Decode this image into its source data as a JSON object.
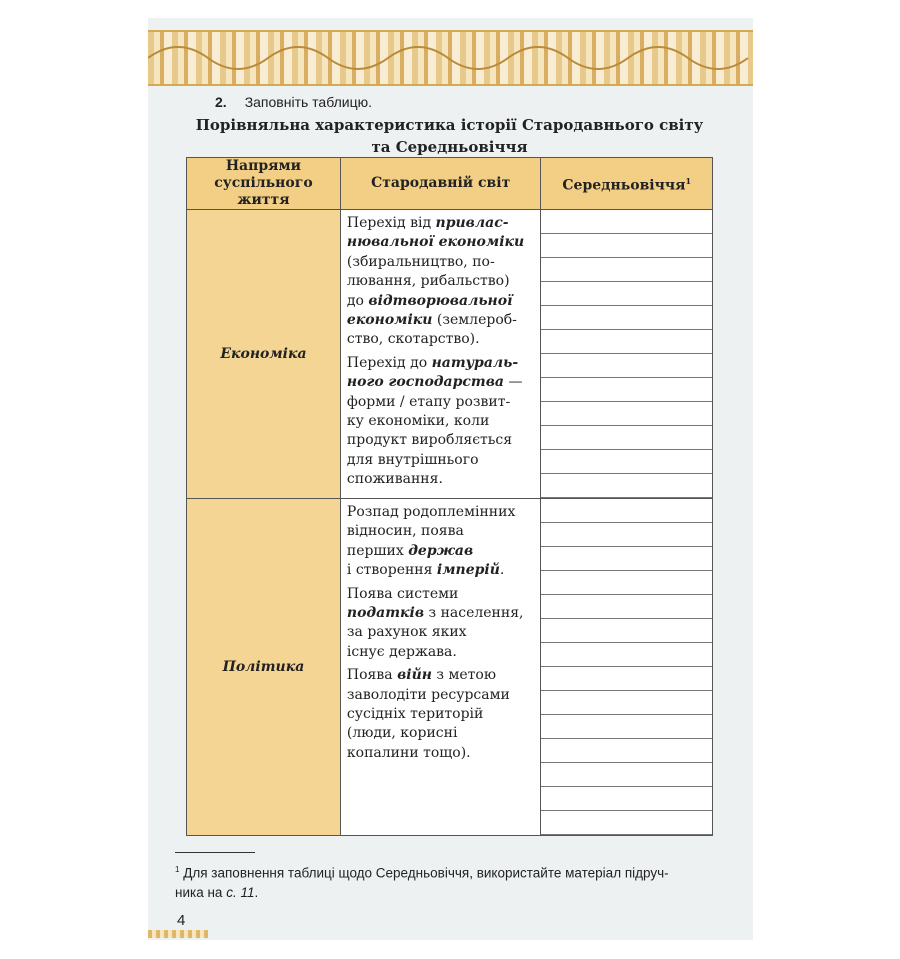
{
  "task": {
    "number": "2.",
    "text": "Заповніть таблицю."
  },
  "title": {
    "line1": "Порівняльна характеристика історії Стародавнього світу",
    "line2": "та Середньовіччя"
  },
  "table": {
    "headers": {
      "col1_line1": "Напрями",
      "col1_line2": "суспільного життя",
      "col2": "Стародавній світ",
      "col3": "Середньовіччя",
      "col3_footnote_mark": "1"
    },
    "rows": [
      {
        "category": "Економіка",
        "answer_lines": 12,
        "paragraphs": [
          [
            [
              {
                "t": "Перехід від "
              },
              {
                "t": "привлас-",
                "em": true
              }
            ],
            [
              {
                "t": "нювальної економіки",
                "em": true
              }
            ],
            [
              {
                "t": "(збиральництво, по-"
              }
            ],
            [
              {
                "t": "лювання, рибальство)"
              }
            ],
            [
              {
                "t": "до "
              },
              {
                "t": "відтворювальної",
                "em": true
              }
            ],
            [
              {
                "t": "економіки",
                "em": true
              },
              {
                "t": " (землероб-"
              }
            ],
            [
              {
                "t": "ство, скотарство)."
              }
            ]
          ],
          [
            [
              {
                "t": "Перехід до "
              },
              {
                "t": "натураль-",
                "em": true
              }
            ],
            [
              {
                "t": "ного господарства",
                "em": true
              },
              {
                "t": " —"
              }
            ],
            [
              {
                "t": "форми / етапу розвит-"
              }
            ],
            [
              {
                "t": "ку економіки, коли"
              }
            ],
            [
              {
                "t": "продукт виробляється"
              }
            ],
            [
              {
                "t": "для внутрішнього"
              }
            ],
            [
              {
                "t": "споживання."
              }
            ]
          ]
        ]
      },
      {
        "category": "Політика",
        "answer_lines": 14,
        "paragraphs": [
          [
            [
              {
                "t": "Розпад родоплемінних"
              }
            ],
            [
              {
                "t": "відносин, поява"
              }
            ],
            [
              {
                "t": "перших "
              },
              {
                "t": "держав",
                "em": true
              }
            ],
            [
              {
                "t": "і створення "
              },
              {
                "t": "імперій",
                "em": true
              },
              {
                "t": "."
              }
            ]
          ],
          [
            [
              {
                "t": "Поява системи"
              }
            ],
            [
              {
                "t": "податків",
                "em": true
              },
              {
                "t": " з населення,"
              }
            ],
            [
              {
                "t": "за рахунок яких"
              }
            ],
            [
              {
                "t": "існує держава."
              }
            ]
          ],
          [
            [
              {
                "t": "Поява "
              },
              {
                "t": "війн",
                "em": true
              },
              {
                "t": " з метою"
              }
            ],
            [
              {
                "t": "заволодіти ресурсами"
              }
            ],
            [
              {
                "t": "сусідніх територій"
              }
            ],
            [
              {
                "t": "(люди, корисні"
              }
            ],
            [
              {
                "t": "копалини тощо)."
              }
            ]
          ]
        ]
      }
    ]
  },
  "footnote": {
    "mark": "1",
    "text": "Для заповнення таблиці щодо Середньовіччя, використайте матеріал підруч-",
    "text2": "ника на ",
    "ref": "с. 11",
    "end": "."
  },
  "page_number": "4",
  "colors": {
    "header_bg": "#f2cf85",
    "category_bg": "#f4d593",
    "ornament": "#d9ae62"
  }
}
